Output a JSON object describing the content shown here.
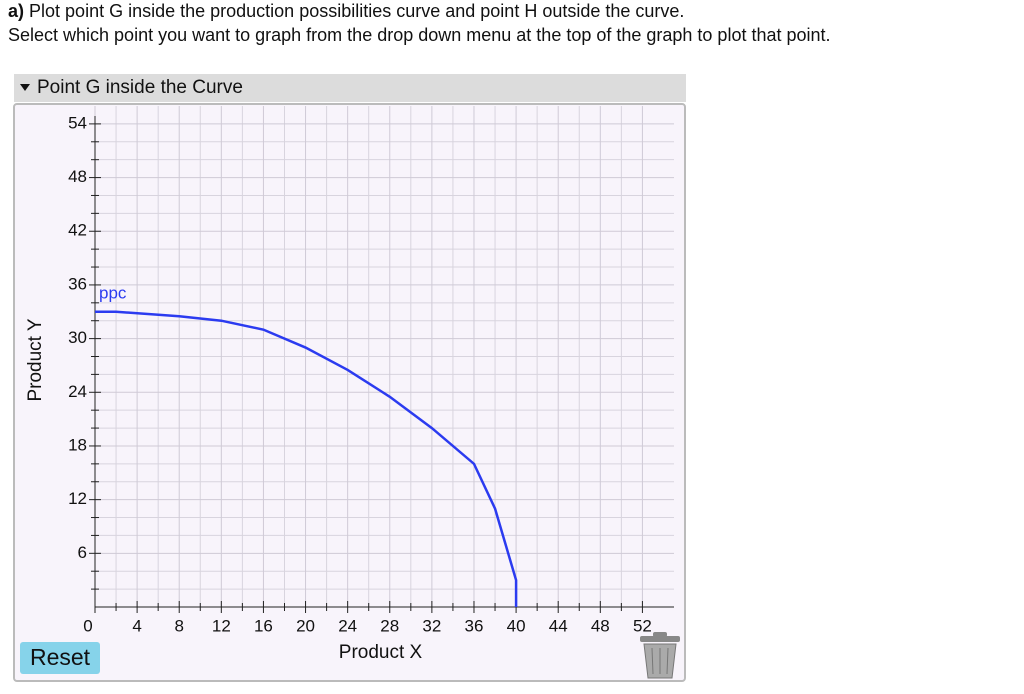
{
  "header": {
    "part": "a)",
    "line1": "Plot point G inside the production possibilities curve and point H outside the curve.",
    "line2": "Select which point you want to graph from the drop down menu at the top of the graph to plot that point."
  },
  "dropdown": {
    "label": "Point G inside the Curve"
  },
  "chart_data": {
    "type": "line",
    "x_label": "Product X",
    "y_label": "Product Y",
    "xlim": [
      0,
      55
    ],
    "ylim": [
      0,
      56
    ],
    "xticks": [
      0,
      4,
      8,
      12,
      16,
      20,
      24,
      28,
      32,
      36,
      40,
      44,
      48,
      52
    ],
    "yticks": [
      6,
      12,
      18,
      24,
      30,
      36,
      42,
      48,
      54
    ],
    "grid": true,
    "series": [
      {
        "name": "ppc",
        "color": "#2b3bf0",
        "x": [
          0,
          2,
          8,
          12,
          16,
          20,
          24,
          28,
          32,
          36,
          38,
          39,
          40,
          40
        ],
        "values": [
          33,
          33,
          32.5,
          32,
          31,
          29,
          26.5,
          23.5,
          20,
          16,
          11,
          7,
          3,
          0
        ]
      }
    ]
  },
  "buttons": {
    "reset": "Reset"
  }
}
